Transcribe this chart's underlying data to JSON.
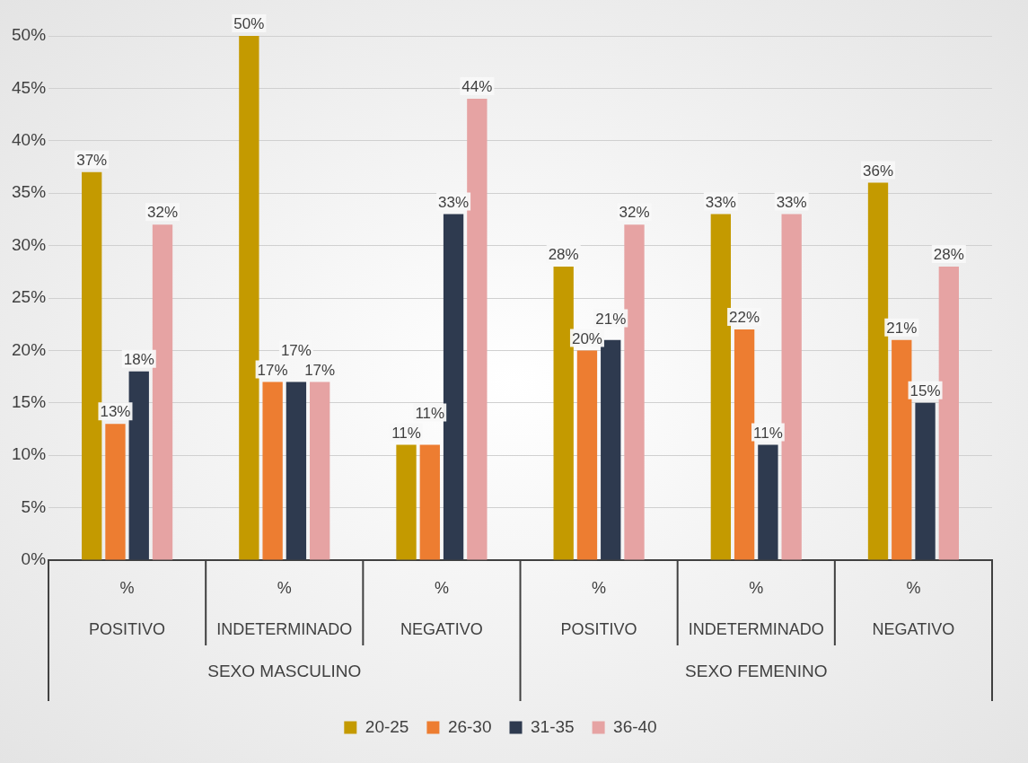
{
  "chart_data": {
    "type": "bar",
    "categories": [
      "POSITIVO",
      "INDETERMINADO",
      "NEGATIVO",
      "POSITIVO",
      "INDETERMINADO",
      "NEGATIVO"
    ],
    "series": [
      {
        "name": "20-25",
        "color": "#c49a00",
        "values": [
          37,
          50,
          11,
          28,
          33,
          36
        ],
        "value_labels": [
          "37%",
          "50%",
          "11%",
          "28%",
          "33%",
          "36%"
        ]
      },
      {
        "name": "26-30",
        "color": "#ed7d31",
        "values": [
          13,
          17,
          11,
          20,
          22,
          21
        ],
        "value_labels": [
          "13%",
          "17%",
          "11%",
          "20%",
          "22%",
          "21%"
        ]
      },
      {
        "name": "31-35",
        "color": "#2e3a4f",
        "values": [
          18,
          17,
          33,
          21,
          11,
          15
        ],
        "value_labels": [
          "18%",
          "17%",
          "33%",
          "21%",
          "11%",
          "15%"
        ]
      },
      {
        "name": "36-40",
        "color": "#e6a3a3",
        "values": [
          32,
          17,
          44,
          32,
          33,
          28
        ],
        "value_labels": [
          "32%",
          "17%",
          "44%",
          "32%",
          "33%",
          "28%"
        ]
      }
    ],
    "ylim": [
      0,
      50
    ],
    "yticks": [
      {
        "value": 0,
        "label": "0%"
      },
      {
        "value": 5,
        "label": "5%"
      },
      {
        "value": 10,
        "label": "10%"
      },
      {
        "value": 15,
        "label": "15%"
      },
      {
        "value": 20,
        "label": "20%"
      },
      {
        "value": 25,
        "label": "25%"
      },
      {
        "value": 30,
        "label": "30%"
      },
      {
        "value": 35,
        "label": "35%"
      },
      {
        "value": 40,
        "label": "40%"
      },
      {
        "value": 45,
        "label": "45%"
      },
      {
        "value": 50,
        "label": "50%"
      }
    ],
    "grid": "y",
    "legend": "bottom",
    "annotations": [
      "%",
      "SEXO MASCULINO",
      "SEXO FEMENINO"
    ]
  }
}
